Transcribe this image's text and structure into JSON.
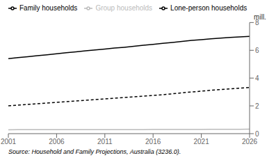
{
  "chart_data": {
    "type": "line",
    "ylabel": "mill.",
    "annotations": [
      "Source: Household and Family Projections, Australia (3236.0)."
    ],
    "x": [
      2001,
      2002,
      2003,
      2004,
      2005,
      2006,
      2007,
      2008,
      2009,
      2010,
      2011,
      2012,
      2013,
      2014,
      2015,
      2016,
      2017,
      2018,
      2019,
      2020,
      2021,
      2022,
      2023,
      2024,
      2025,
      2026
    ],
    "series": [
      {
        "name": "Family households",
        "color": "#000000",
        "line_style": "solid",
        "values": [
          5.4,
          5.47,
          5.54,
          5.61,
          5.68,
          5.75,
          5.82,
          5.89,
          5.96,
          6.02,
          6.09,
          6.16,
          6.22,
          6.29,
          6.36,
          6.43,
          6.5,
          6.57,
          6.64,
          6.71,
          6.77,
          6.83,
          6.88,
          6.93,
          6.97,
          7.0
        ]
      },
      {
        "name": "Group households",
        "color": "#bbbbbb",
        "line_style": "solid",
        "values": [
          0.28,
          0.285,
          0.29,
          0.29,
          0.29,
          0.29,
          0.29,
          0.29,
          0.29,
          0.29,
          0.29,
          0.29,
          0.29,
          0.29,
          0.29,
          0.3,
          0.3,
          0.3,
          0.3,
          0.3,
          0.3,
          0.31,
          0.31,
          0.31,
          0.31,
          0.32
        ]
      },
      {
        "name": "Lone-person households",
        "color": "#000000",
        "line_style": "dashed",
        "values": [
          2.0,
          2.05,
          2.1,
          2.15,
          2.2,
          2.25,
          2.3,
          2.35,
          2.4,
          2.45,
          2.5,
          2.55,
          2.6,
          2.65,
          2.7,
          2.75,
          2.8,
          2.87,
          2.94,
          3.0,
          3.06,
          3.12,
          3.17,
          3.22,
          3.27,
          3.32
        ]
      }
    ],
    "xlim": [
      2001,
      2026
    ],
    "ylim": [
      0,
      8
    ],
    "xticks": [
      2001,
      2006,
      2011,
      2016,
      2021,
      2026
    ],
    "yticks": [
      0,
      2,
      4,
      6,
      8
    ],
    "grid": false,
    "legend": "top"
  }
}
